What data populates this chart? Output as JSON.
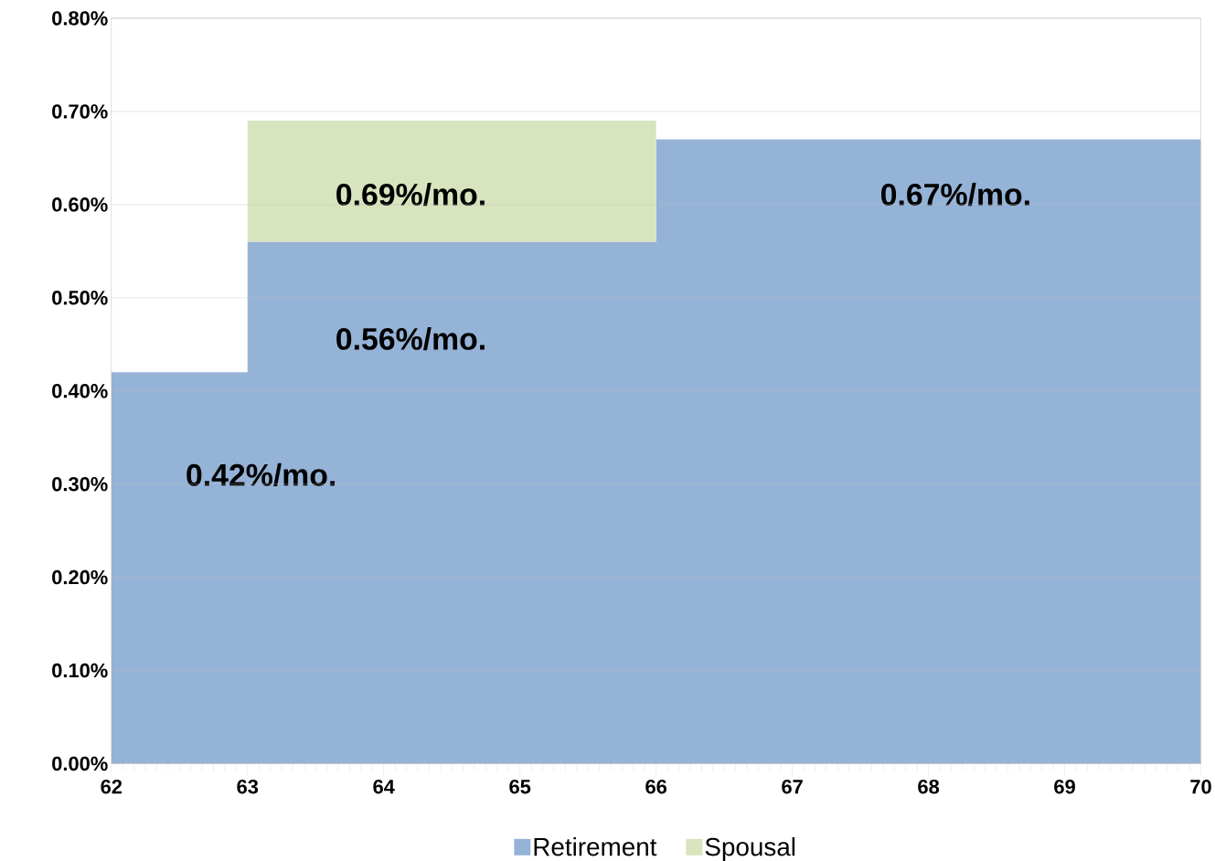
{
  "chart_data": {
    "type": "area",
    "stacked": true,
    "x": [
      62,
      63,
      63,
      66,
      66,
      70
    ],
    "series": [
      {
        "name": "Retirement",
        "color": "#95b3d7",
        "values": [
          0.42,
          0.42,
          0.56,
          0.56,
          0.67,
          0.67
        ]
      },
      {
        "name": "Spousal",
        "color": "#d7e4bd",
        "values": [
          0,
          0,
          0.13,
          0.13,
          0,
          0
        ]
      }
    ],
    "xlim": [
      62,
      70
    ],
    "xticks": [
      62,
      63,
      64,
      65,
      66,
      67,
      68,
      69,
      70
    ],
    "ylim": [
      0,
      0.8
    ],
    "yticks": [
      {
        "value": 0,
        "label": "0.00%"
      },
      {
        "value": 0.1,
        "label": "0.10%"
      },
      {
        "value": 0.2,
        "label": "0.20%"
      },
      {
        "value": 0.3,
        "label": "0.30%"
      },
      {
        "value": 0.4,
        "label": "0.40%"
      },
      {
        "value": 0.5,
        "label": "0.50%"
      },
      {
        "value": 0.6,
        "label": "0.60%"
      },
      {
        "value": 0.7,
        "label": "0.70%"
      },
      {
        "value": 0.8,
        "label": "0.80%"
      }
    ],
    "grid": "y",
    "legend": "bottom",
    "annotations": [
      "0.42%/mo.",
      "0.56%/mo.",
      "0.69%/mo.",
      "0.67%/mo."
    ]
  }
}
